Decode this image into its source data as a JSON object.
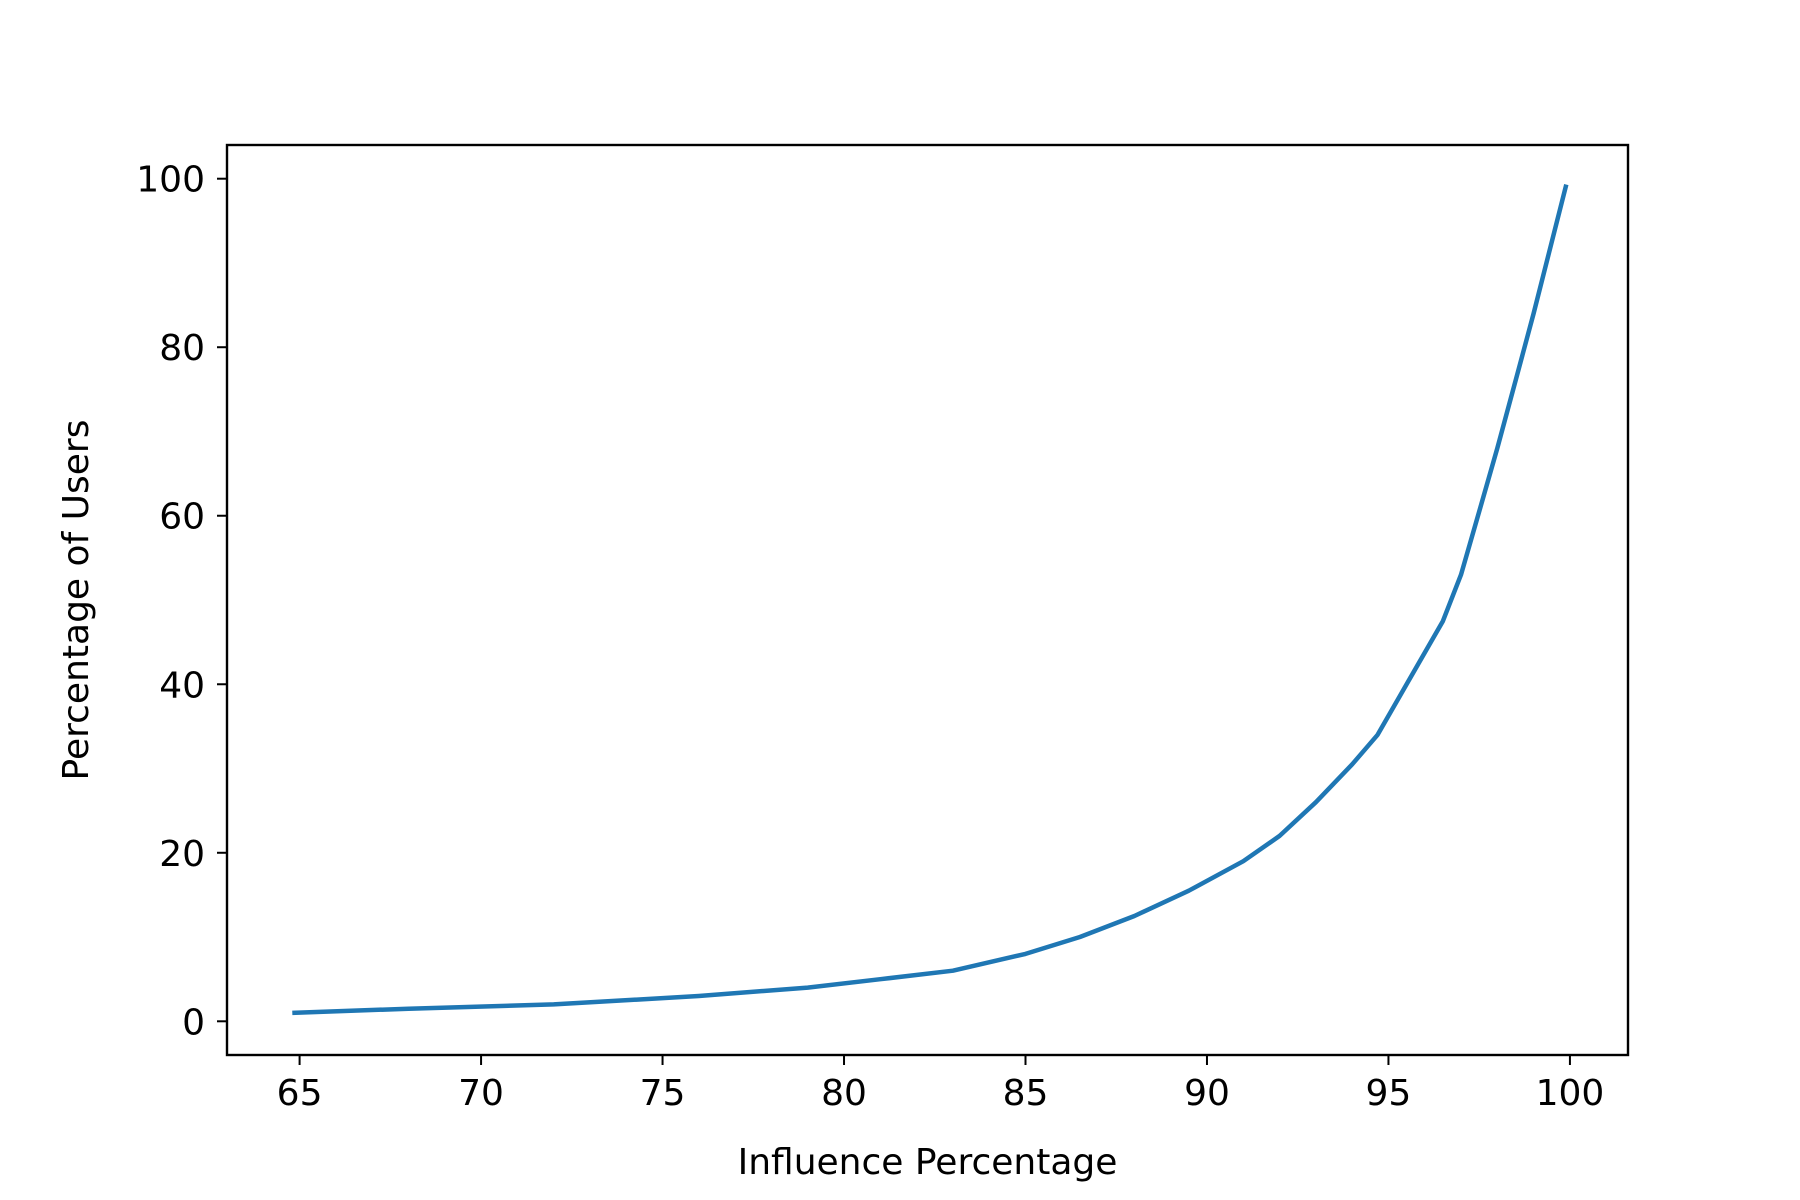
{
  "chart_data": {
    "type": "line",
    "title": "",
    "xlabel": "Influence Percentage",
    "ylabel": "Percentage of Users",
    "xlim": [
      63.0,
      101.6
    ],
    "ylim": [
      -4.0,
      104.0
    ],
    "xticks": [
      65,
      70,
      75,
      80,
      85,
      90,
      95,
      100
    ],
    "yticks": [
      0,
      20,
      40,
      60,
      80,
      100
    ],
    "grid": false,
    "legend": "none",
    "series": [
      {
        "color": "#1f77b4",
        "x": [
          64.8,
          68.0,
          72.0,
          76.0,
          79.0,
          81.0,
          83.0,
          85.0,
          86.5,
          88.0,
          89.5,
          91.0,
          92.0,
          93.0,
          94.0,
          94.7,
          95.5,
          96.5,
          97.0,
          97.5,
          98.0,
          98.5,
          99.0,
          99.9
        ],
        "y": [
          1.0,
          1.5,
          2.0,
          3.0,
          4.0,
          5.0,
          6.0,
          8.0,
          10.0,
          12.5,
          15.5,
          19.0,
          22.0,
          26.0,
          30.5,
          34.0,
          40.0,
          47.5,
          53.0,
          60.5,
          68.0,
          76.0,
          84.0,
          99.3
        ]
      }
    ]
  }
}
